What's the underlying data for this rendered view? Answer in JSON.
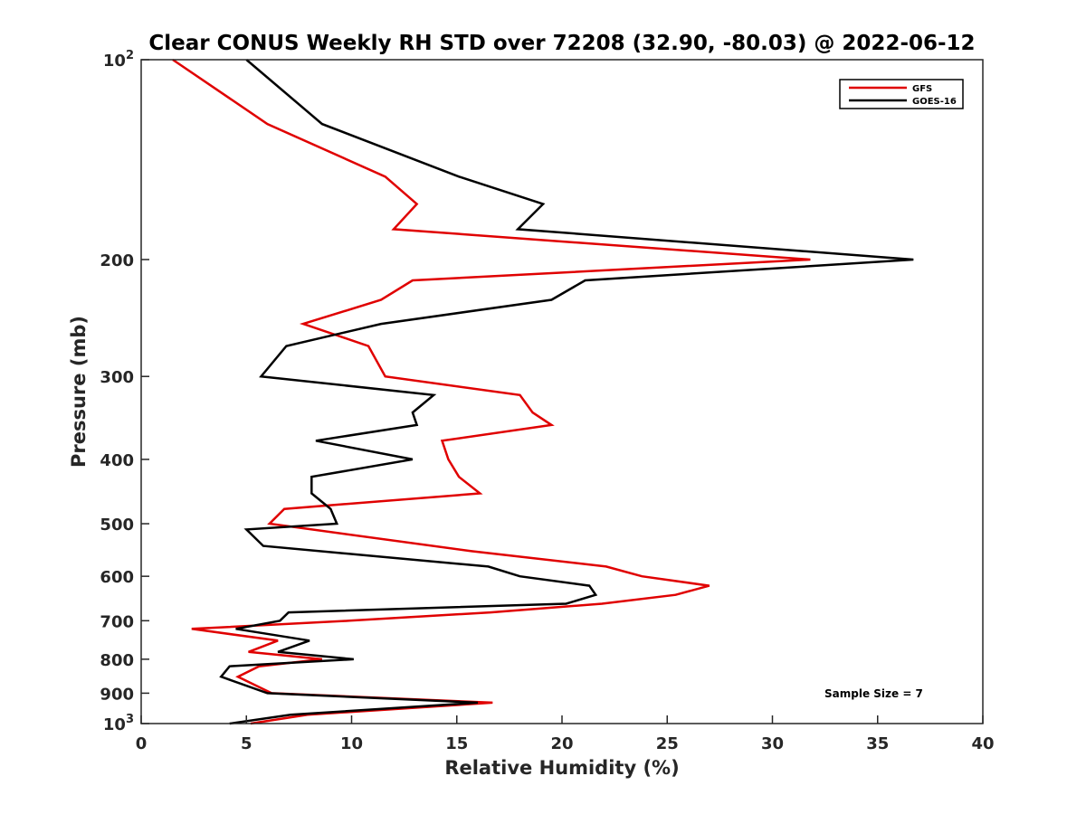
{
  "chart_data": {
    "type": "line",
    "title": "Clear CONUS Weekly RH STD over 72208 (32.90, -80.03) @ 2022-06-12",
    "xlabel": "Relative Humidity (%)",
    "ylabel": "Pressure (mb)",
    "xlim": [
      0,
      40
    ],
    "ylim": [
      100,
      1000
    ],
    "y_scale": "log",
    "y_reversed": true,
    "grid": false,
    "legend_position": "top-right",
    "x_ticks": [
      "0",
      "5",
      "10",
      "15",
      "20",
      "25",
      "30",
      "35",
      "40"
    ],
    "y_ticks": [
      {
        "value": 100,
        "label": "10",
        "sup": "2"
      },
      {
        "value": 200,
        "label": "200",
        "sup": ""
      },
      {
        "value": 300,
        "label": "300",
        "sup": ""
      },
      {
        "value": 400,
        "label": "400",
        "sup": ""
      },
      {
        "value": 500,
        "label": "500",
        "sup": ""
      },
      {
        "value": 600,
        "label": "600",
        "sup": ""
      },
      {
        "value": 700,
        "label": "700",
        "sup": ""
      },
      {
        "value": 800,
        "label": "800",
        "sup": ""
      },
      {
        "value": 900,
        "label": "900",
        "sup": ""
      },
      {
        "value": 1000,
        "label": "10",
        "sup": "3"
      }
    ],
    "annotation": "Sample Size = 7",
    "series": [
      {
        "name": "GFS",
        "color": "#e00000",
        "points": [
          [
            1.5,
            100
          ],
          [
            6.0,
            125
          ],
          [
            11.6,
            150
          ],
          [
            13.1,
            165
          ],
          [
            12.0,
            180
          ],
          [
            31.8,
            200
          ],
          [
            12.9,
            215
          ],
          [
            11.4,
            230
          ],
          [
            7.7,
            250
          ],
          [
            10.8,
            270
          ],
          [
            11.6,
            300
          ],
          [
            18.0,
            320
          ],
          [
            18.6,
            340
          ],
          [
            19.5,
            355
          ],
          [
            14.3,
            375
          ],
          [
            14.6,
            400
          ],
          [
            15.1,
            425
          ],
          [
            16.1,
            450
          ],
          [
            6.8,
            475
          ],
          [
            6.1,
            500
          ],
          [
            15.7,
            550
          ],
          [
            22.1,
            580
          ],
          [
            23.8,
            600
          ],
          [
            27.0,
            620
          ],
          [
            25.4,
            640
          ],
          [
            21.9,
            660
          ],
          [
            16.6,
            680
          ],
          [
            9.9,
            700
          ],
          [
            2.4,
            720
          ],
          [
            6.5,
            750
          ],
          [
            5.1,
            780
          ],
          [
            8.6,
            800
          ],
          [
            5.6,
            820
          ],
          [
            4.6,
            850
          ],
          [
            6.2,
            900
          ],
          [
            16.7,
            930
          ],
          [
            7.9,
            970
          ],
          [
            5.2,
            1000
          ]
        ]
      },
      {
        "name": "GOES-16",
        "color": "#000000",
        "points": [
          [
            5.0,
            100
          ],
          [
            8.6,
            125
          ],
          [
            15.1,
            150
          ],
          [
            19.1,
            165
          ],
          [
            17.9,
            180
          ],
          [
            36.7,
            200
          ],
          [
            21.1,
            215
          ],
          [
            19.5,
            230
          ],
          [
            11.4,
            250
          ],
          [
            6.9,
            270
          ],
          [
            5.7,
            300
          ],
          [
            13.9,
            320
          ],
          [
            12.9,
            340
          ],
          [
            13.1,
            355
          ],
          [
            8.3,
            375
          ],
          [
            12.9,
            400
          ],
          [
            8.1,
            425
          ],
          [
            8.1,
            450
          ],
          [
            9.0,
            475
          ],
          [
            9.3,
            500
          ],
          [
            5.0,
            510
          ],
          [
            5.8,
            540
          ],
          [
            16.5,
            580
          ],
          [
            18.0,
            600
          ],
          [
            21.3,
            620
          ],
          [
            21.6,
            640
          ],
          [
            20.2,
            660
          ],
          [
            7.0,
            680
          ],
          [
            6.6,
            700
          ],
          [
            4.5,
            720
          ],
          [
            8.0,
            750
          ],
          [
            6.5,
            780
          ],
          [
            10.1,
            800
          ],
          [
            4.2,
            820
          ],
          [
            3.8,
            850
          ],
          [
            6.0,
            900
          ],
          [
            16.0,
            930
          ],
          [
            7.1,
            970
          ],
          [
            4.2,
            1000
          ]
        ]
      }
    ]
  }
}
